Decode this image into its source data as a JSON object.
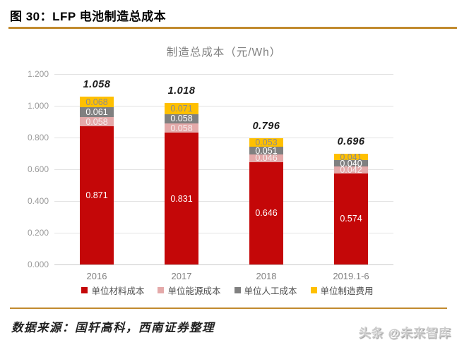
{
  "header": {
    "title": "图 30：LFP 电池制造总成本"
  },
  "chart_data": {
    "type": "bar",
    "subtype": "stacked",
    "title": "制造总成本（元/Wh）",
    "categories": [
      "2016",
      "2017",
      "2018",
      "2019.1-6"
    ],
    "series": [
      {
        "name": "单位材料成本",
        "color": "#C40708",
        "label_color": "#ffffff",
        "values": [
          0.871,
          0.831,
          0.646,
          0.574
        ]
      },
      {
        "name": "单位能源成本",
        "color": "#E4A9A9",
        "label_color": "#f6efef",
        "values": [
          0.058,
          0.058,
          0.046,
          0.042
        ]
      },
      {
        "name": "单位人工成本",
        "color": "#808080",
        "label_color": "#ffffff",
        "values": [
          0.061,
          0.058,
          0.051,
          0.04
        ]
      },
      {
        "name": "单位制造费用",
        "color": "#FFC000",
        "label_color": "#8C8C8C",
        "values": [
          0.068,
          0.071,
          0.053,
          0.041
        ]
      }
    ],
    "totals": [
      "1.058",
      "1.018",
      "0.796",
      "0.696"
    ],
    "y_ticks": [
      "1.200",
      "1.000",
      "0.800",
      "0.600",
      "0.400",
      "0.200",
      "0.000"
    ],
    "ylim": [
      0,
      1.2
    ],
    "grid": true,
    "legend_position": "bottom"
  },
  "footer": {
    "source": "数据来源：国轩高科，西南证券整理",
    "watermark": "头条 @未来智库"
  }
}
